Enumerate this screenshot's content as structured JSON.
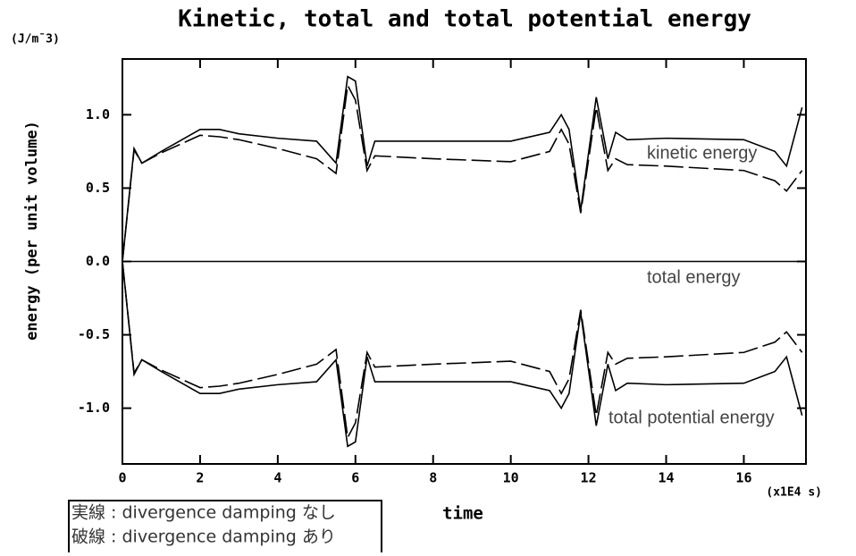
{
  "chart_data": {
    "type": "line",
    "title": "Kinetic, total and total potential energy",
    "y_unit": "(J/m¯3)",
    "x_unit": "(x1E4 s)",
    "x_label": "time",
    "y_label": "energy (per unit volume)",
    "x": [
      0,
      0.3,
      0.5,
      1,
      2,
      2.5,
      3,
      4,
      5,
      5.5,
      5.8,
      6.0,
      6.3,
      6.5,
      8,
      10,
      11,
      11.3,
      11.5,
      11.8,
      12.2,
      12.5,
      12.7,
      13,
      14,
      16,
      16.8,
      17.1,
      17.5
    ],
    "series": [
      {
        "color": "#000000",
        "dash": false,
        "values": [
          0,
          0.77,
          0.67,
          0.75,
          0.9,
          0.9,
          0.87,
          0.84,
          0.82,
          0.67,
          1.26,
          1.23,
          0.65,
          0.82,
          0.82,
          0.82,
          0.88,
          1.0,
          0.9,
          0.35,
          1.12,
          0.7,
          0.88,
          0.83,
          0.84,
          0.83,
          0.75,
          0.65,
          1.05
        ]
      },
      {
        "color": "#000000",
        "dash": true,
        "values": [
          0,
          0.76,
          0.67,
          0.74,
          0.86,
          0.85,
          0.83,
          0.77,
          0.7,
          0.6,
          1.2,
          1.1,
          0.62,
          0.72,
          0.7,
          0.68,
          0.75,
          0.9,
          0.8,
          0.33,
          1.05,
          0.62,
          0.7,
          0.66,
          0.65,
          0.62,
          0.55,
          0.48,
          0.62
        ]
      },
      {
        "color": "#000000",
        "dash": false,
        "values": [
          0,
          -0.77,
          -0.67,
          -0.75,
          -0.9,
          -0.9,
          -0.87,
          -0.84,
          -0.82,
          -0.67,
          -1.26,
          -1.23,
          -0.65,
          -0.82,
          -0.82,
          -0.82,
          -0.88,
          -1.0,
          -0.9,
          -0.35,
          -1.12,
          -0.7,
          -0.88,
          -0.83,
          -0.84,
          -0.83,
          -0.75,
          -0.65,
          -1.05
        ]
      },
      {
        "color": "#000000",
        "dash": true,
        "values": [
          0,
          -0.76,
          -0.67,
          -0.74,
          -0.86,
          -0.85,
          -0.83,
          -0.77,
          -0.7,
          -0.6,
          -1.2,
          -1.1,
          -0.62,
          -0.72,
          -0.7,
          -0.68,
          -0.75,
          -0.9,
          -0.8,
          -0.33,
          -1.05,
          -0.62,
          -0.7,
          -0.66,
          -0.65,
          -0.62,
          -0.55,
          -0.48,
          -0.62
        ]
      },
      {
        "color": "#000000",
        "dash": false,
        "values": [
          0,
          0,
          0,
          0,
          0,
          0,
          0,
          0,
          0,
          0,
          0,
          0,
          0,
          0,
          0,
          0,
          0,
          0,
          0,
          0,
          0,
          0,
          0,
          0,
          0,
          0,
          0,
          0,
          0
        ]
      }
    ],
    "xlim": [
      0,
      17.6
    ],
    "ylim": [
      -1.38,
      1.38
    ],
    "xticks": [
      0,
      2,
      4,
      6,
      8,
      10,
      12,
      14,
      16
    ],
    "yticks": [
      {
        "value": -1.0,
        "label": "-1.0"
      },
      {
        "value": -0.5,
        "label": "-0.5"
      },
      {
        "value": 0.0,
        "label": "0.0"
      },
      {
        "value": 0.5,
        "label": "0.5"
      },
      {
        "value": 1.0,
        "label": "1.0"
      }
    ],
    "annotations": [
      "kinetic energy",
      "total energy",
      "total potential energy"
    ],
    "legend_lines": [
      "実線 : divergence damping  なし",
      "破線 : divergence damping  あり"
    ]
  }
}
